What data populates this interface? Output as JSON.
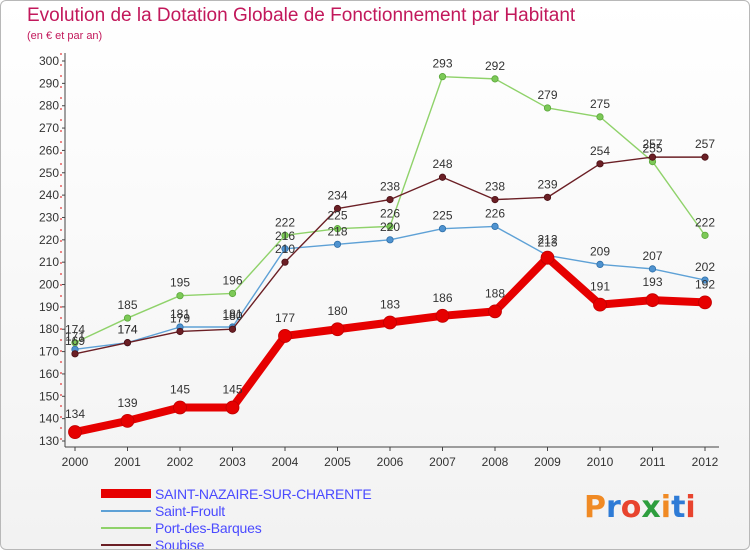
{
  "header": {
    "title": "Evolution de la Dotation Globale de Fonctionnement par Habitant",
    "subtitle": "(en € et par an)"
  },
  "logo": {
    "text": "Proxiti",
    "colors": [
      "#f08a24",
      "#2e7bd6",
      "#e8442e",
      "#2e9e3e",
      "#f08a24",
      "#2e7bd6",
      "#e8442e"
    ]
  },
  "chart_data": {
    "type": "line",
    "x": [
      2000,
      2001,
      2002,
      2003,
      2004,
      2005,
      2006,
      2007,
      2008,
      2009,
      2010,
      2011,
      2012
    ],
    "ylim": [
      130,
      300
    ],
    "yticks": [
      130,
      140,
      150,
      160,
      170,
      180,
      190,
      200,
      210,
      220,
      230,
      240,
      250,
      260,
      270,
      280,
      290,
      300
    ],
    "grid": false,
    "legend_position": "bottom-left",
    "series": [
      {
        "name": "Port-des-Barques",
        "color": "#8fd26a",
        "values": [
          174,
          185,
          195,
          196,
          222,
          225,
          226,
          293,
          292,
          279,
          275,
          255,
          222
        ]
      },
      {
        "name": "Saint-Froult",
        "color": "#5ea1d6",
        "values": [
          171,
          174,
          181,
          181,
          216,
          218,
          220,
          225,
          226,
          213,
          209,
          207,
          202
        ]
      },
      {
        "name": "Soubise",
        "color": "#6b1f25",
        "values": [
          169,
          174,
          179,
          180,
          210,
          234,
          238,
          248,
          238,
          239,
          254,
          257,
          257
        ]
      },
      {
        "name": "SAINT-NAZAIRE-SUR-CHARENTE",
        "color": "#e60000",
        "values": [
          134,
          139,
          145,
          145,
          177,
          180,
          183,
          186,
          188,
          212,
          191,
          193,
          192
        ]
      }
    ],
    "data_labels": [
      {
        "series": "Port-des-Barques",
        "labels": [
          "174",
          "185",
          "195",
          "196",
          "222",
          "225",
          "226",
          "293",
          "292",
          "279",
          "275",
          "255",
          "222"
        ]
      },
      {
        "series": "Saint-Froult",
        "labels": [
          "171",
          "174",
          "181",
          "181",
          "216",
          "218",
          "220",
          "225",
          "226",
          "213",
          "209",
          "207",
          "202"
        ]
      },
      {
        "series": "Soubise",
        "labels": [
          "169",
          "174",
          "179",
          "180",
          "210",
          "234",
          "238",
          "248",
          "238",
          "239",
          "254",
          "257",
          "257"
        ]
      },
      {
        "series": "SAINT-NAZAIRE-SUR-CHARENTE",
        "labels": [
          "134",
          "139",
          "145",
          "145",
          "177",
          "180",
          "183",
          "186",
          "188",
          "212",
          "191",
          "193",
          "192"
        ]
      }
    ]
  }
}
